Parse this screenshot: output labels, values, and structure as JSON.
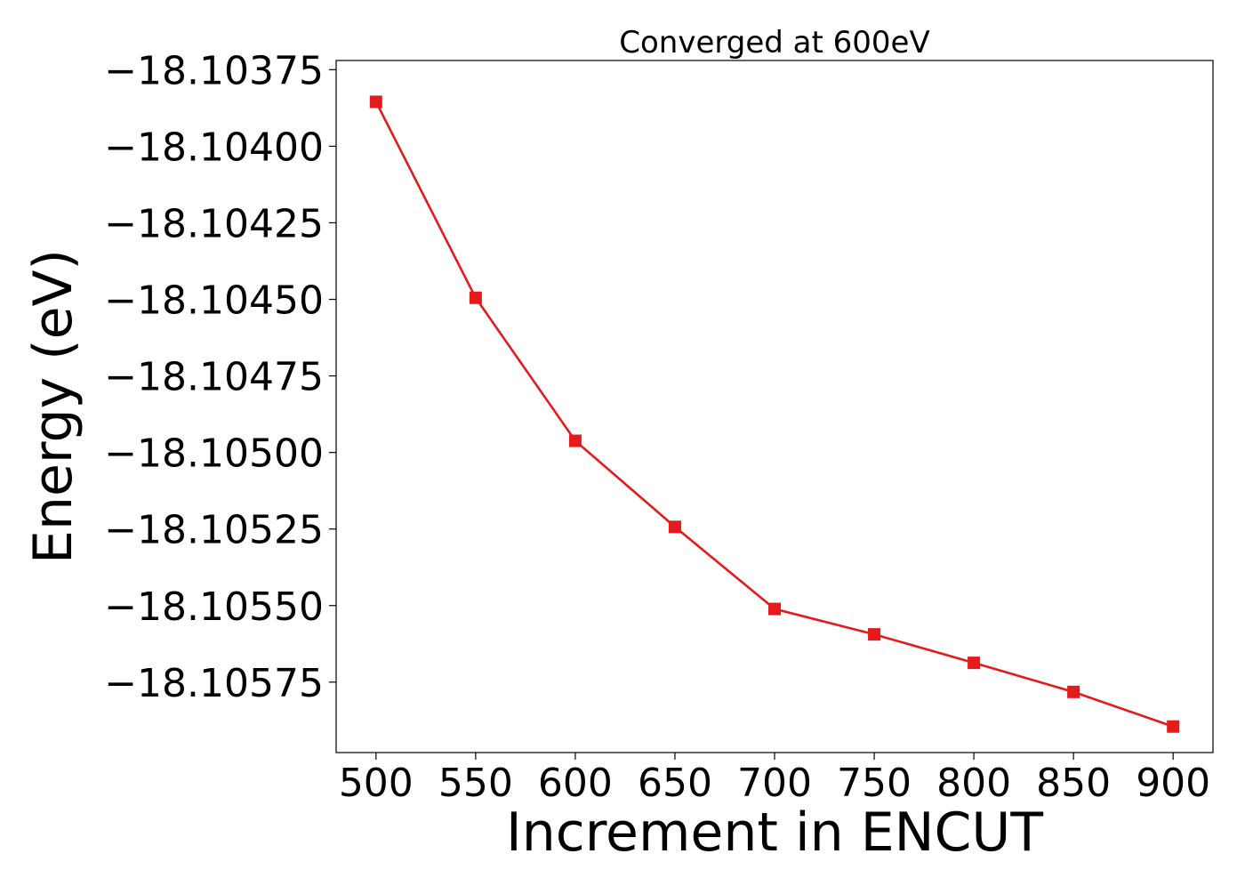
{
  "chart_data": {
    "type": "line",
    "title": "Converged at 600eV",
    "xlabel": "Increment in ENCUT",
    "ylabel": "Energy (eV)",
    "x": [
      500,
      550,
      600,
      650,
      700,
      750,
      800,
      850,
      900
    ],
    "series": [
      {
        "values": [
          -18.103855,
          -18.104495,
          -18.104962,
          -18.105243,
          -18.105511,
          -18.105594,
          -18.105687,
          -18.105782,
          -18.105895
        ]
      }
    ],
    "xticks": [
      500,
      550,
      600,
      650,
      700,
      750,
      800,
      850,
      900
    ],
    "xtick_labels": [
      "500",
      "550",
      "600",
      "650",
      "700",
      "750",
      "800",
      "850",
      "900"
    ],
    "yticks": [
      -18.10375,
      -18.104,
      -18.10425,
      -18.1045,
      -18.10475,
      -18.105,
      -18.10525,
      -18.1055,
      -18.10575
    ],
    "ytick_labels": [
      "−18.10375",
      "−18.10400",
      "−18.10425",
      "−18.10450",
      "−18.10475",
      "−18.10500",
      "−18.10525",
      "−18.10550",
      "−18.10575"
    ],
    "xlim": [
      480,
      920
    ],
    "ylim": [
      -18.10598,
      -18.10372
    ],
    "grid": false,
    "line_color": "#e41a1c",
    "marker": "square"
  }
}
